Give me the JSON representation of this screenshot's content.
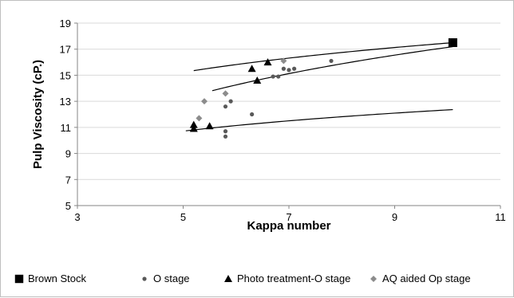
{
  "chart_data": {
    "type": "scatter",
    "title": "",
    "xlabel": "Kappa  number",
    "ylabel": "Pulp Viscosity (cP.)",
    "xlim": [
      3,
      11
    ],
    "ylim": [
      5,
      19
    ],
    "xticks": [
      3,
      5,
      7,
      9,
      11
    ],
    "yticks": [
      5,
      7,
      9,
      11,
      13,
      15,
      17,
      19
    ],
    "grid": "horizontal",
    "legend_position": "bottom",
    "series": [
      {
        "name": "Brown Stock",
        "marker": "square",
        "color": "#000000",
        "points": [
          [
            10.1,
            17.5
          ]
        ]
      },
      {
        "name": "O stage",
        "marker": "circle",
        "color": "#595959",
        "points": [
          [
            5.8,
            10.3
          ],
          [
            5.8,
            10.7
          ],
          [
            5.8,
            12.6
          ],
          [
            5.9,
            13.0
          ],
          [
            6.3,
            12.0
          ],
          [
            6.7,
            14.9
          ],
          [
            6.8,
            14.9
          ],
          [
            6.9,
            15.5
          ],
          [
            7.0,
            15.4
          ],
          [
            7.1,
            15.5
          ],
          [
            7.8,
            16.1
          ]
        ]
      },
      {
        "name": "Photo treatment-O  stage",
        "marker": "triangle",
        "color": "#000000",
        "points": [
          [
            5.2,
            10.9
          ],
          [
            5.2,
            11.2
          ],
          [
            5.5,
            11.1
          ],
          [
            6.3,
            15.5
          ],
          [
            6.4,
            14.6
          ],
          [
            6.6,
            16.0
          ]
        ]
      },
      {
        "name": "AQ aided Op stage",
        "marker": "diamond",
        "color": "#8c8c8c",
        "points": [
          [
            5.3,
            11.7
          ],
          [
            5.4,
            13.0
          ],
          [
            5.8,
            13.6
          ],
          [
            6.9,
            16.1
          ]
        ]
      }
    ],
    "trendlines": [
      {
        "type": "log",
        "a": 2.35,
        "b": 6.93,
        "x_range": [
          5.05,
          10.1
        ]
      },
      {
        "type": "log",
        "a": 3.23,
        "b": 10.03,
        "x_range": [
          5.2,
          10.1
        ]
      },
      {
        "type": "log",
        "a": 5.64,
        "b": 4.15,
        "x_range": [
          5.55,
          10.1
        ]
      }
    ]
  }
}
